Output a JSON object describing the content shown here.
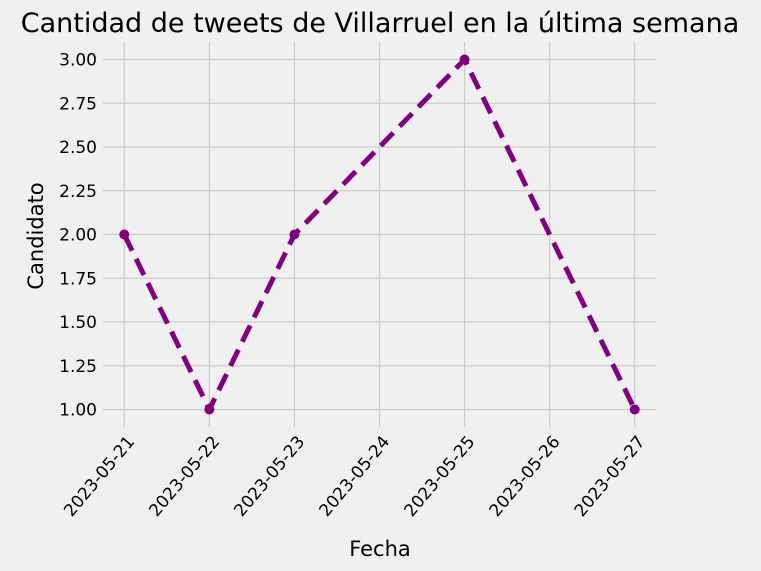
{
  "chart_data": {
    "type": "line",
    "title": "Cantidad de tweets de Villarruel en la última semana",
    "xlabel": "Fecha",
    "ylabel": "Candidato",
    "x": [
      "2023-05-21",
      "2023-05-22",
      "2023-05-23",
      "2023-05-24",
      "2023-05-25",
      "2023-05-26",
      "2023-05-27"
    ],
    "xlim": [
      "2023-05-20T18:00",
      "2023-05-27T06:00"
    ],
    "ylim": [
      0.9,
      3.1
    ],
    "yticks": [
      "1.00",
      "1.25",
      "1.50",
      "1.75",
      "2.00",
      "2.25",
      "2.50",
      "2.75",
      "3.00"
    ],
    "grid": true,
    "series": [
      {
        "points": [
          {
            "x": "2023-05-21",
            "y": 2
          },
          {
            "x": "2023-05-22",
            "y": 1
          },
          {
            "x": "2023-05-23",
            "y": 2
          },
          {
            "x": "2023-05-25",
            "y": 3
          },
          {
            "x": "2023-05-27",
            "y": 1
          }
        ],
        "color": "#800080",
        "line_style": "dashed",
        "marker": "circle"
      }
    ]
  }
}
